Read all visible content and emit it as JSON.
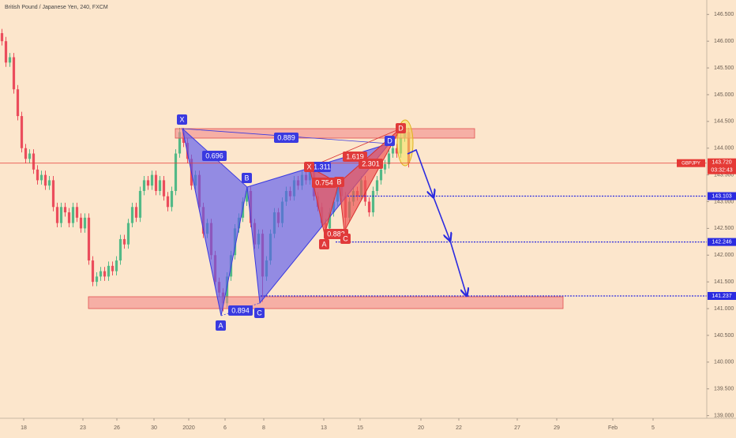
{
  "chart_data": {
    "type": "candlestick",
    "title": "British Pound / Japanese Yen, 240, FXCM",
    "up_color": "#53b987",
    "down_color": "#eb4d5c",
    "ohlc": [
      [
        146.15,
        146.23,
        145.92,
        146.0
      ],
      [
        146.0,
        146.08,
        145.52,
        145.6
      ],
      [
        145.6,
        145.78,
        145.52,
        145.7
      ],
      [
        145.7,
        145.78,
        145.02,
        145.1
      ],
      [
        145.1,
        145.18,
        144.52,
        144.6
      ],
      [
        144.6,
        144.68,
        143.92,
        144.0
      ],
      [
        144.0,
        144.08,
        143.72,
        143.8
      ],
      [
        143.8,
        143.98,
        143.72,
        143.9
      ],
      [
        143.9,
        143.98,
        143.52,
        143.6
      ],
      [
        143.6,
        143.68,
        143.32,
        143.4
      ],
      [
        143.4,
        143.58,
        143.32,
        143.5
      ],
      [
        143.5,
        143.58,
        143.22,
        143.3
      ],
      [
        143.3,
        143.48,
        143.22,
        143.4
      ],
      [
        143.4,
        143.48,
        142.82,
        142.9
      ],
      [
        142.9,
        142.98,
        142.52,
        142.6
      ],
      [
        142.6,
        142.98,
        142.52,
        142.9
      ],
      [
        142.9,
        142.98,
        142.72,
        142.8
      ],
      [
        142.8,
        142.88,
        142.52,
        142.6
      ],
      [
        142.6,
        142.98,
        142.52,
        142.9
      ],
      [
        142.9,
        142.98,
        142.62,
        142.7
      ],
      [
        142.7,
        142.78,
        142.42,
        142.5
      ],
      [
        142.5,
        142.78,
        142.42,
        142.7
      ],
      [
        142.7,
        142.78,
        141.82,
        141.9
      ],
      [
        141.9,
        141.98,
        141.42,
        141.5
      ],
      [
        141.5,
        141.68,
        141.42,
        141.6
      ],
      [
        141.6,
        141.78,
        141.52,
        141.7
      ],
      [
        141.7,
        141.78,
        141.52,
        141.6
      ],
      [
        141.6,
        141.88,
        141.52,
        141.8
      ],
      [
        141.8,
        141.88,
        141.62,
        141.7
      ],
      [
        141.7,
        141.98,
        141.62,
        141.9
      ],
      [
        141.9,
        142.38,
        141.82,
        142.3
      ],
      [
        142.3,
        142.38,
        142.12,
        142.2
      ],
      [
        142.2,
        142.68,
        142.12,
        142.6
      ],
      [
        142.6,
        142.98,
        142.52,
        142.9
      ],
      [
        142.9,
        142.98,
        142.62,
        142.7
      ],
      [
        142.7,
        143.28,
        142.62,
        143.2
      ],
      [
        143.2,
        143.48,
        143.12,
        143.4
      ],
      [
        143.4,
        143.48,
        143.22,
        143.3
      ],
      [
        143.3,
        143.58,
        143.22,
        143.5
      ],
      [
        143.5,
        143.58,
        143.12,
        143.2
      ],
      [
        143.2,
        143.48,
        143.12,
        143.4
      ],
      [
        143.4,
        143.48,
        143.02,
        143.1
      ],
      [
        143.1,
        143.18,
        142.82,
        142.9
      ],
      [
        142.9,
        143.28,
        142.82,
        143.2
      ],
      [
        143.2,
        143.98,
        143.12,
        143.9
      ],
      [
        143.9,
        144.38,
        143.82,
        144.3
      ],
      [
        144.3,
        144.38,
        144.02,
        144.1
      ],
      [
        144.1,
        144.18,
        143.72,
        143.8
      ],
      [
        143.8,
        143.88,
        143.22,
        143.3
      ],
      [
        143.3,
        143.58,
        143.22,
        143.5
      ],
      [
        143.5,
        143.58,
        142.82,
        142.9
      ],
      [
        142.9,
        142.98,
        142.32,
        142.4
      ],
      [
        142.4,
        142.68,
        142.32,
        142.6
      ],
      [
        142.6,
        142.68,
        141.92,
        142.0
      ],
      [
        142.0,
        142.08,
        141.42,
        141.5
      ],
      [
        141.5,
        141.58,
        141.22,
        141.3
      ],
      [
        141.3,
        141.38,
        140.95,
        141.1
      ],
      [
        141.1,
        141.68,
        141.02,
        141.6
      ],
      [
        141.6,
        142.08,
        141.52,
        142.0
      ],
      [
        142.0,
        142.58,
        141.92,
        142.5
      ],
      [
        142.5,
        142.78,
        142.42,
        142.7
      ],
      [
        142.7,
        143.08,
        142.62,
        143.0
      ],
      [
        143.0,
        143.28,
        142.92,
        143.2
      ],
      [
        143.2,
        143.28,
        142.52,
        142.6
      ],
      [
        142.6,
        142.68,
        142.12,
        142.2
      ],
      [
        142.2,
        142.48,
        142.12,
        142.4
      ],
      [
        142.4,
        142.48,
        141.12,
        141.6
      ],
      [
        141.6,
        141.98,
        141.52,
        141.9
      ],
      [
        141.9,
        142.48,
        141.82,
        142.4
      ],
      [
        142.4,
        142.88,
        142.32,
        142.8
      ],
      [
        142.8,
        142.88,
        142.52,
        142.6
      ],
      [
        142.6,
        143.08,
        142.52,
        143.0
      ],
      [
        143.0,
        143.28,
        142.92,
        143.2
      ],
      [
        143.2,
        143.28,
        143.02,
        143.1
      ],
      [
        143.1,
        143.48,
        143.02,
        143.4
      ],
      [
        143.4,
        143.48,
        143.22,
        143.3
      ],
      [
        143.3,
        143.58,
        143.22,
        143.5
      ],
      [
        143.5,
        143.58,
        143.32,
        143.4
      ],
      [
        143.4,
        143.64,
        143.32,
        143.6
      ],
      [
        143.6,
        143.62,
        143.02,
        143.1
      ],
      [
        143.1,
        143.18,
        142.82,
        142.9
      ],
      [
        142.9,
        142.98,
        142.52,
        142.6
      ],
      [
        142.6,
        142.68,
        142.37,
        142.5
      ],
      [
        142.5,
        142.88,
        142.42,
        142.8
      ],
      [
        142.8,
        143.08,
        142.72,
        143.0
      ],
      [
        143.0,
        143.36,
        142.92,
        143.3
      ],
      [
        143.3,
        143.34,
        143.02,
        143.1
      ],
      [
        143.1,
        143.18,
        142.5,
        142.7
      ],
      [
        142.7,
        143.08,
        142.62,
        143.0
      ],
      [
        143.0,
        143.28,
        142.92,
        143.2
      ],
      [
        143.2,
        143.28,
        143.02,
        143.1
      ],
      [
        143.1,
        143.48,
        143.02,
        143.4
      ],
      [
        143.4,
        143.48,
        142.92,
        143.0
      ],
      [
        143.0,
        143.08,
        142.72,
        142.8
      ],
      [
        142.8,
        143.28,
        142.72,
        143.2
      ],
      [
        143.2,
        143.48,
        143.12,
        143.4
      ],
      [
        143.4,
        143.68,
        143.32,
        143.6
      ],
      [
        143.6,
        143.78,
        143.52,
        143.7
      ],
      [
        143.7,
        143.98,
        143.62,
        143.9
      ],
      [
        143.9,
        144.08,
        143.82,
        144.0
      ],
      [
        144.0,
        144.08,
        143.82,
        143.9
      ],
      [
        143.9,
        144.28,
        143.82,
        144.2
      ],
      [
        144.2,
        144.36,
        144.12,
        144.3
      ],
      [
        144.3,
        144.38,
        143.64,
        143.72
      ]
    ],
    "ylim": [
      138.95,
      146.77
    ],
    "yticks": [
      {
        "value": 139,
        "label": "139.000"
      },
      {
        "value": 139.5,
        "label": "139.500"
      },
      {
        "value": 140,
        "label": "140.000"
      },
      {
        "value": 140.5,
        "label": "140.500"
      },
      {
        "value": 141,
        "label": "141.000"
      },
      {
        "value": 141.5,
        "label": "141.500"
      },
      {
        "value": 142,
        "label": "142.000"
      },
      {
        "value": 142.5,
        "label": "142.500"
      },
      {
        "value": 143,
        "label": "143.000"
      },
      {
        "value": 143.5,
        "label": "143.500"
      },
      {
        "value": 144,
        "label": "144.000"
      },
      {
        "value": 144.5,
        "label": "144.500"
      },
      {
        "value": 145,
        "label": "145.000"
      },
      {
        "value": 145.5,
        "label": "145.500"
      },
      {
        "value": 146,
        "label": "146.000"
      },
      {
        "value": 146.5,
        "label": "146.500"
      }
    ],
    "xlim": [
      0,
      179
    ],
    "xticks": [
      {
        "value": 6,
        "label": "18"
      },
      {
        "value": 21,
        "label": "23"
      },
      {
        "value": 29.6,
        "label": "26"
      },
      {
        "value": 39,
        "label": "30"
      },
      {
        "value": 47.8,
        "label": "2020"
      },
      {
        "value": 57,
        "label": "6"
      },
      {
        "value": 66.8,
        "label": "8"
      },
      {
        "value": 82,
        "label": "13"
      },
      {
        "value": 91.2,
        "label": "15"
      },
      {
        "value": 106.6,
        "label": "20"
      },
      {
        "value": 116.2,
        "label": "22"
      },
      {
        "value": 131,
        "label": "27"
      },
      {
        "value": 141,
        "label": "29"
      },
      {
        "value": 155.2,
        "label": "Feb"
      },
      {
        "value": 165.4,
        "label": "5"
      }
    ],
    "symbol": "GBPJPY",
    "countdown": "03:32:43",
    "price_lines": [
      {
        "value": 143.72,
        "label": "143.720",
        "color": "#e53935"
      },
      {
        "value": 143.103,
        "label": "143.103",
        "color": "#2b2be0"
      },
      {
        "value": 142.246,
        "label": "142.246",
        "color": "#2b2be0"
      },
      {
        "value": 141.237,
        "label": "141.237",
        "color": "#2b2be0"
      }
    ],
    "annotations": [
      "X",
      "A",
      "B",
      "C",
      "D",
      "0.696",
      "0.889",
      "0.894",
      "X",
      "1.311",
      "0.754",
      "B",
      "1.619",
      "2.301",
      "0.883",
      "A",
      "C",
      "D"
    ]
  }
}
